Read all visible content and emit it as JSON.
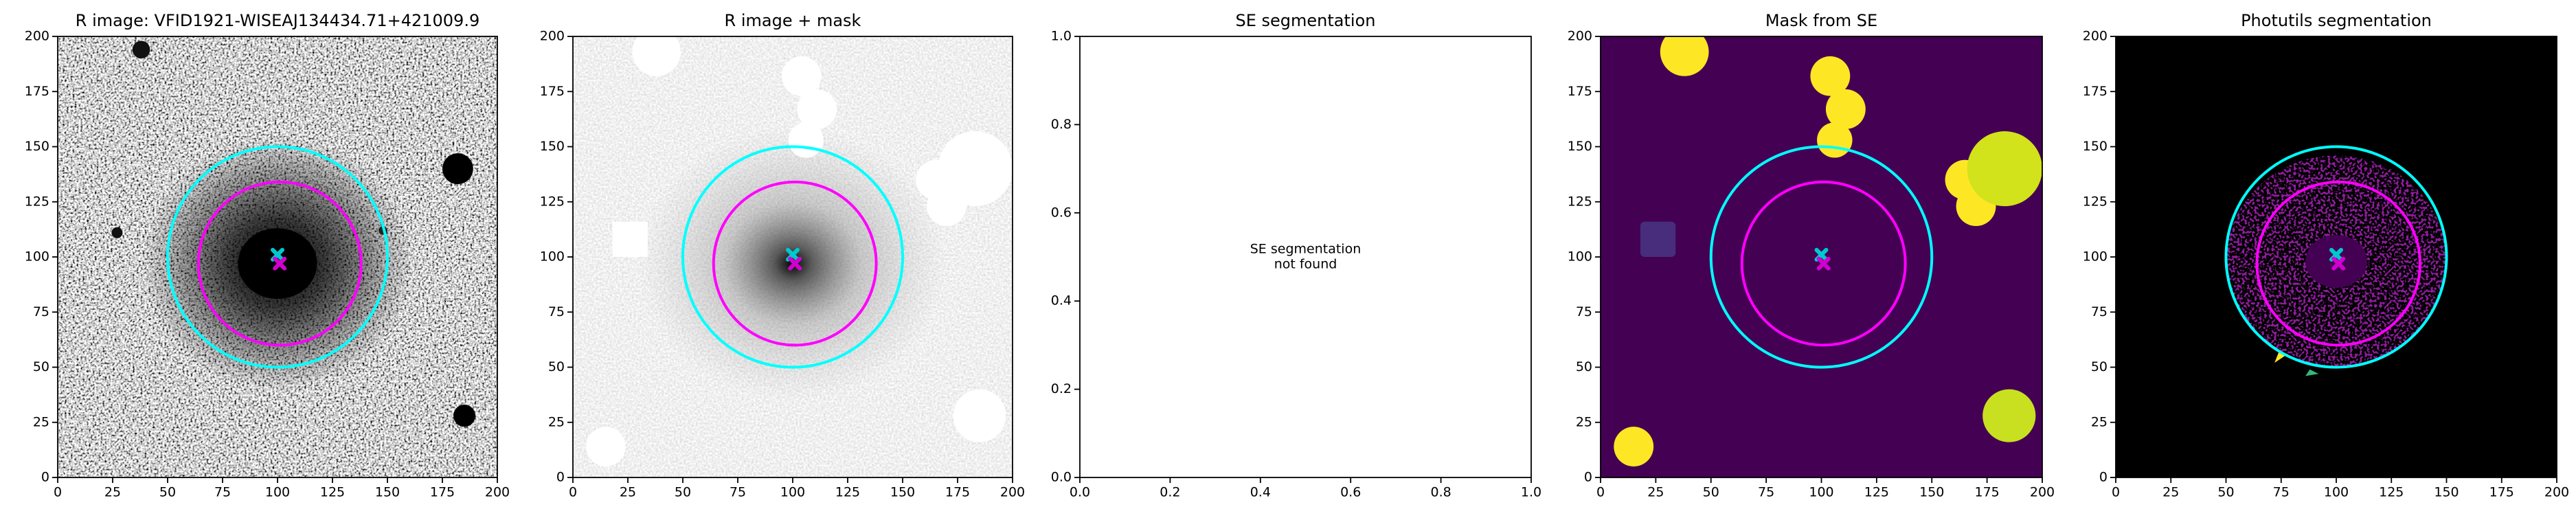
{
  "chart_data": [
    {
      "type": "image",
      "title": "R image: VFID1921-WISEAJ134434.71+421009.9",
      "xlim": [
        0,
        200
      ],
      "ylim": [
        0,
        200
      ],
      "xticks": [
        0,
        25,
        50,
        75,
        100,
        125,
        150,
        175,
        200
      ],
      "yticks": [
        0,
        25,
        50,
        75,
        100,
        125,
        150,
        175,
        200
      ],
      "circles": [
        {
          "color": "#00ffff",
          "cx": 100,
          "cy": 100,
          "r": 50
        },
        {
          "color": "#ff00ff",
          "cx": 101,
          "cy": 97,
          "r": 37
        }
      ],
      "markers": [
        {
          "color": "#00c8d0",
          "x": 100,
          "y": 101
        },
        {
          "color": "#d000d0",
          "x": 101,
          "y": 97
        }
      ]
    },
    {
      "type": "image",
      "title": "R image + mask",
      "xlim": [
        0,
        200
      ],
      "ylim": [
        0,
        200
      ],
      "xticks": [
        0,
        25,
        50,
        75,
        100,
        125,
        150,
        175,
        200
      ],
      "yticks": [
        0,
        25,
        50,
        75,
        100,
        125,
        150,
        175,
        200
      ],
      "circles": [
        {
          "color": "#00ffff",
          "cx": 100,
          "cy": 100,
          "r": 50
        },
        {
          "color": "#ff00ff",
          "cx": 101,
          "cy": 97,
          "r": 37
        }
      ],
      "markers": [
        {
          "color": "#00c8d0",
          "x": 100,
          "y": 101
        },
        {
          "color": "#d000d0",
          "x": 101,
          "y": 97
        }
      ]
    },
    {
      "type": "empty",
      "title": "SE segmentation",
      "xlim": [
        0,
        1
      ],
      "ylim": [
        0,
        1
      ],
      "xticks": [
        {
          "value": 0,
          "label": "0.0"
        },
        0.2,
        0.4,
        0.6,
        0.8,
        {
          "value": 1,
          "label": "1.0"
        }
      ],
      "yticks": [
        {
          "value": 0,
          "label": "0.0"
        },
        0.2,
        0.4,
        0.6,
        0.8,
        {
          "value": 1,
          "label": "1.0"
        }
      ],
      "annotation": [
        "SE segmentation",
        "not found"
      ]
    },
    {
      "type": "image",
      "title": "Mask from SE",
      "xlim": [
        0,
        200
      ],
      "ylim": [
        0,
        200
      ],
      "xticks": [
        0,
        25,
        50,
        75,
        100,
        125,
        150,
        175,
        200
      ],
      "yticks": [
        0,
        25,
        50,
        75,
        100,
        125,
        150,
        175,
        200
      ],
      "circles": [
        {
          "color": "#00ffff",
          "cx": 100,
          "cy": 100,
          "r": 50
        },
        {
          "color": "#ff00ff",
          "cx": 101,
          "cy": 97,
          "r": 37
        }
      ],
      "markers": [
        {
          "color": "#00c8d0",
          "x": 100,
          "y": 101
        },
        {
          "color": "#d000d0",
          "x": 101,
          "y": 97
        }
      ]
    },
    {
      "type": "image",
      "title": "Photutils segmentation",
      "xlim": [
        0,
        200
      ],
      "ylim": [
        0,
        200
      ],
      "xticks": [
        0,
        25,
        50,
        75,
        100,
        125,
        150,
        175,
        200
      ],
      "yticks": [
        0,
        25,
        50,
        75,
        100,
        125,
        150,
        175,
        200
      ],
      "circles": [
        {
          "color": "#00ffff",
          "cx": 100,
          "cy": 100,
          "r": 50
        },
        {
          "color": "#ff00ff",
          "cx": 101,
          "cy": 97,
          "r": 37
        }
      ],
      "markers": [
        {
          "color": "#00c8d0",
          "x": 100,
          "y": 101
        },
        {
          "color": "#d000d0",
          "x": 101,
          "y": 97
        }
      ]
    }
  ]
}
